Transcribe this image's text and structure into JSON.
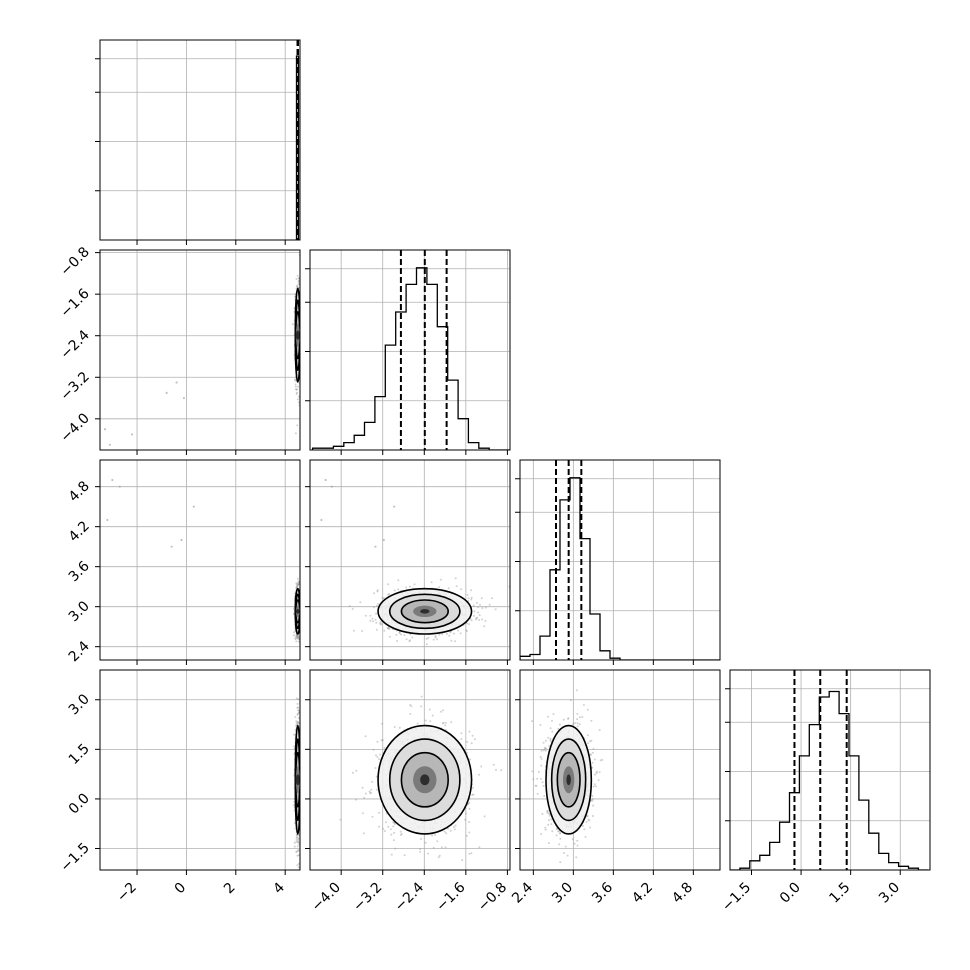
{
  "chart_data": {
    "type": "corner",
    "description_params": 4,
    "grid": true,
    "colors": {
      "line": "#000000",
      "grid": "#b0b0b0",
      "points": "#9a9a9a"
    },
    "param_ranges": [
      [
        -3.5,
        4.6
      ],
      [
        -4.6,
        -0.75
      ],
      [
        2.2,
        5.2
      ],
      [
        -2.15,
        3.9
      ]
    ],
    "x_ticks": [
      {
        "values": [
          -2,
          0,
          2,
          4
        ],
        "labels": [
          "−2",
          "0",
          "2",
          "4"
        ]
      },
      {
        "values": [
          -4.0,
          -3.2,
          -2.4,
          -1.6,
          -0.8
        ],
        "labels": [
          "−4.0",
          "−3.2",
          "−2.4",
          "−1.6",
          "−0.8"
        ]
      },
      {
        "values": [
          2.4,
          3.0,
          3.6,
          4.2,
          4.8
        ],
        "labels": [
          "2.4",
          "3.0",
          "3.6",
          "4.2",
          "4.8"
        ]
      },
      {
        "values": [
          -1.5,
          0.0,
          1.5,
          3.0
        ],
        "labels": [
          "−1.5",
          "0.0",
          "1.5",
          "3.0"
        ]
      }
    ],
    "y_ticks": [
      null,
      {
        "values": [
          -4.0,
          -3.2,
          -2.4,
          -1.6,
          -0.8
        ],
        "labels": [
          "−4.0",
          "−3.2",
          "−2.4",
          "−1.6",
          "−0.8"
        ]
      },
      {
        "values": [
          2.4,
          3.0,
          3.6,
          4.2,
          4.8
        ],
        "labels": [
          "2.4",
          "3.0",
          "3.6",
          "4.2",
          "4.8"
        ]
      },
      {
        "values": [
          -1.5,
          0.0,
          1.5,
          3.0
        ],
        "labels": [
          "−1.5",
          "0.0",
          "1.5",
          "3.0"
        ]
      }
    ],
    "histograms": [
      {
        "param": 0,
        "bin_edges": [
          4.42,
          4.46,
          4.5,
          4.54,
          4.58
        ],
        "counts": [
          0,
          1.0,
          1.0,
          0
        ],
        "quantiles": [
          4.5,
          4.51,
          4.52
        ]
      },
      {
        "param": 1,
        "bin_edges": [
          -4.55,
          -4.35,
          -4.15,
          -3.95,
          -3.75,
          -3.55,
          -3.35,
          -3.15,
          -2.95,
          -2.75,
          -2.55,
          -2.35,
          -2.15,
          -1.95,
          -1.75,
          -1.55,
          -1.35,
          -1.15,
          -0.95,
          -0.75
        ],
        "counts": [
          0.01,
          0.01,
          0.02,
          0.04,
          0.08,
          0.15,
          0.29,
          0.57,
          0.75,
          0.9,
          0.99,
          0.9,
          0.67,
          0.38,
          0.17,
          0.04,
          0.01,
          0.0,
          0.0
        ],
        "quantiles": [
          -2.85,
          -2.39,
          -1.97
        ]
      },
      {
        "param": 2,
        "bin_edges": [
          2.2,
          2.35,
          2.5,
          2.65,
          2.8,
          2.95,
          3.1,
          3.25,
          3.4,
          3.55,
          3.7,
          3.85,
          4.0,
          4.15,
          4.3,
          4.45,
          4.6,
          4.75,
          4.9,
          5.05,
          5.2
        ],
        "counts": [
          0.02,
          0.03,
          0.13,
          0.49,
          0.87,
          0.99,
          0.66,
          0.25,
          0.05,
          0.01,
          0.0,
          0.0,
          0.0,
          0.0,
          0.0,
          0.0,
          0.0,
          0.0,
          0.0,
          0.0
        ],
        "quantiles": [
          2.74,
          2.93,
          3.12
        ]
      },
      {
        "param": 3,
        "bin_edges": [
          -2.15,
          -1.85,
          -1.55,
          -1.25,
          -0.95,
          -0.65,
          -0.35,
          -0.05,
          0.25,
          0.55,
          0.85,
          1.15,
          1.45,
          1.75,
          2.05,
          2.35,
          2.65,
          2.95,
          3.25,
          3.55,
          3.85
        ],
        "counts": [
          0.0,
          0.01,
          0.05,
          0.08,
          0.15,
          0.26,
          0.42,
          0.62,
          0.79,
          0.94,
          0.97,
          0.85,
          0.62,
          0.38,
          0.2,
          0.09,
          0.04,
          0.02,
          0.01,
          0.0
        ],
        "quantiles": [
          -0.2,
          0.58,
          1.38
        ]
      }
    ],
    "pair_panels": [
      {
        "x_param": 0,
        "y_param": 1,
        "mean": [
          4.51,
          -2.39
        ],
        "sd": [
          0.05,
          0.45
        ]
      },
      {
        "x_param": 0,
        "y_param": 2,
        "mean": [
          4.51,
          2.93
        ],
        "sd": [
          0.05,
          0.17
        ]
      },
      {
        "x_param": 1,
        "y_param": 2,
        "mean": [
          -2.39,
          2.93
        ],
        "sd": [
          0.45,
          0.17
        ]
      },
      {
        "x_param": 0,
        "y_param": 3,
        "mean": [
          4.51,
          0.58
        ],
        "sd": [
          0.05,
          0.82
        ]
      },
      {
        "x_param": 1,
        "y_param": 3,
        "mean": [
          -2.39,
          0.58
        ],
        "sd": [
          0.45,
          0.82
        ]
      },
      {
        "x_param": 2,
        "y_param": 3,
        "mean": [
          2.93,
          0.58
        ],
        "sd": [
          0.17,
          0.82
        ]
      }
    ],
    "outlier_points": [
      {
        "x": -3.3,
        "y": -4.2
      },
      {
        "x": -3.1,
        "y": -4.5
      },
      {
        "x": -2.2,
        "y": -4.3
      },
      {
        "x": -0.8,
        "y": -3.5
      },
      {
        "x": -0.4,
        "y": -3.3
      },
      {
        "x": -0.1,
        "y": -3.6
      },
      {
        "x": -3.0,
        "y": 4.9
      },
      {
        "x": -2.7,
        "y": 4.8
      },
      {
        "x": -3.2,
        "y": 4.3
      },
      {
        "x": -0.6,
        "y": 3.9
      },
      {
        "x": -0.2,
        "y": 4.0
      },
      {
        "x": 0.3,
        "y": 4.5
      }
    ]
  }
}
